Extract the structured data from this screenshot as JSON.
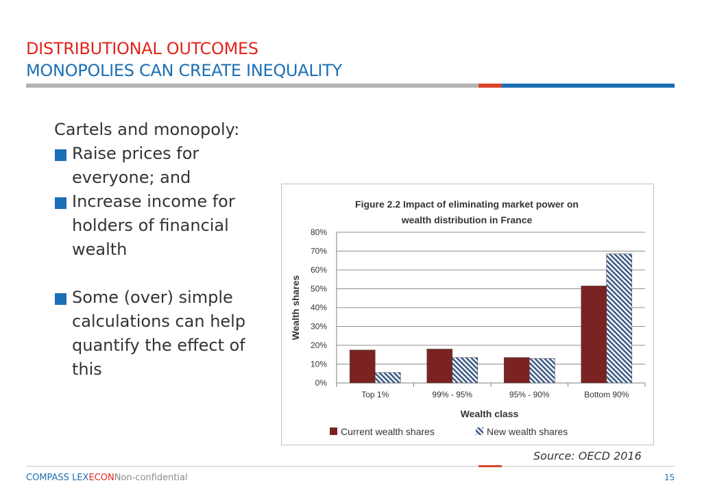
{
  "header": {
    "title_line1": "DISTRIBUTIONAL OUTCOMES",
    "title_line2": "MONOPOLIES CAN CREATE INEQUALITY"
  },
  "content": {
    "lead": "Cartels and monopoly:",
    "bullets": [
      "Raise prices for everyone; and",
      "Increase income for holders of financial wealth",
      "Some (over) simple calculations can help quantify the effect of this"
    ]
  },
  "chart_data": {
    "type": "bar",
    "title": "Figure 2.2 Impact of eliminating market power on wealth distribution in France",
    "title_lines": [
      "Figure 2.2 Impact of eliminating market power on",
      "wealth distribution in France"
    ],
    "xlabel": "Wealth class",
    "ylabel": "Wealth shares",
    "categories": [
      "Top 1%",
      "99% - 95%",
      "95% - 90%",
      "Bottom 90%"
    ],
    "series": [
      {
        "name": "Current wealth shares",
        "values": [
          17.5,
          18,
          13.5,
          51.5
        ],
        "color": "#7b2222",
        "pattern": "solid"
      },
      {
        "name": "New wealth shares",
        "values": [
          5.5,
          13.5,
          13,
          68.5
        ],
        "color": "#3c5a86",
        "pattern": "hatched"
      }
    ],
    "ylim": [
      0,
      80
    ],
    "yticks": [
      "0%",
      "10%",
      "20%",
      "30%",
      "40%",
      "50%",
      "60%",
      "70%",
      "80%"
    ],
    "grid": true,
    "legend": "bottom"
  },
  "source": "Source: OECD 2016",
  "footer": {
    "brand_part1": "COMPASS LEX",
    "brand_part2": "ECON",
    "classification": "Non-confidential",
    "page_number": "15"
  },
  "colors": {
    "red": "#e0241b",
    "blue": "#1b6fb5",
    "grey_rule": "#b3b3b3"
  }
}
